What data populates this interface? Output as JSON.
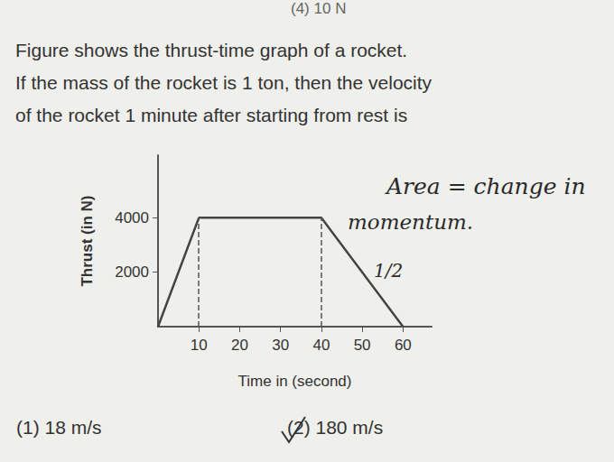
{
  "previous_option": "(4) 10 N",
  "question": [
    "Figure shows the thrust-time graph of a rocket.",
    "If the mass of the rocket is 1 ton, then the velocity",
    "of the rocket 1 minute after starting from rest is"
  ],
  "chart_data": {
    "type": "line",
    "x": [
      0,
      10,
      40,
      60
    ],
    "values": [
      0,
      4000,
      4000,
      0
    ],
    "color": "#444444",
    "xlabel": "Time in (second)",
    "ylabel": "Thrust (in N)",
    "xlim": [
      0,
      67
    ],
    "ylim": [
      0,
      6300
    ],
    "xticks": [
      10,
      20,
      30,
      40,
      50,
      60
    ],
    "yticks": [
      2000,
      4000
    ],
    "guides_x": [
      10,
      40
    ],
    "grid": false
  },
  "annotations": [
    "Area = change in",
    "momentum.",
    "1/2"
  ],
  "options": [
    {
      "number": "(1)",
      "text": "18 m/s"
    },
    {
      "number": "(2)",
      "text": "180 m/s"
    }
  ]
}
